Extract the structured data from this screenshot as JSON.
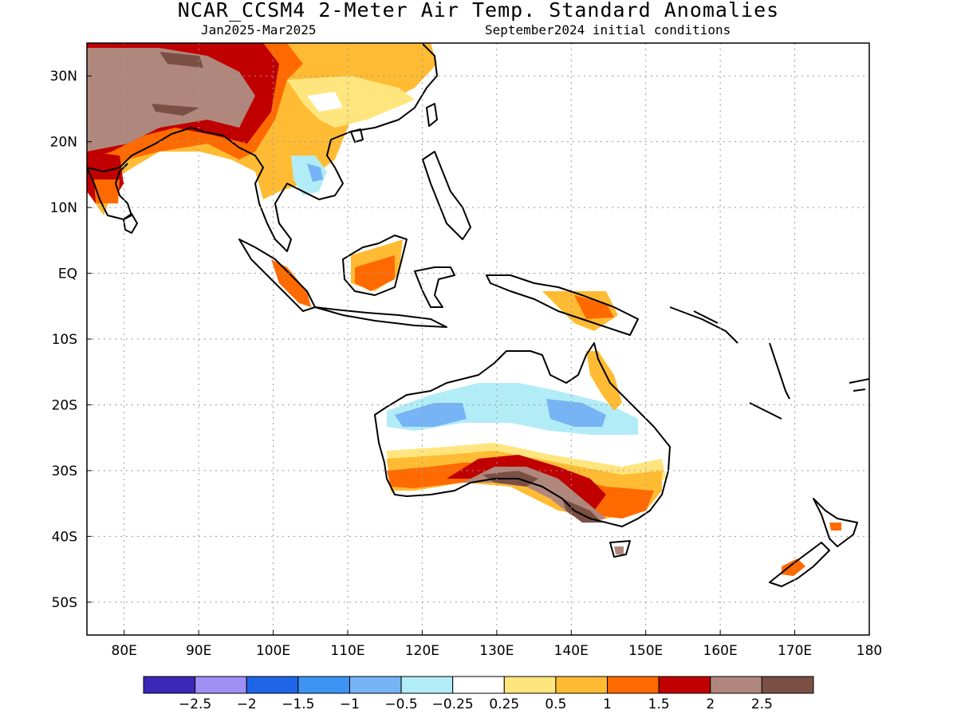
{
  "title": "NCAR_CCSM4 2-Meter Air Temp. Standard Anomalies",
  "subtitle_period": "Jan2025-Mar2025",
  "subtitle_init": "September2024 initial conditions",
  "map": {
    "lon_range": [
      75,
      180
    ],
    "lat_range": [
      -55,
      35
    ],
    "lon_ticks": [
      {
        "value": 80,
        "label": "80E"
      },
      {
        "value": 90,
        "label": "90E"
      },
      {
        "value": 100,
        "label": "100E"
      },
      {
        "value": 110,
        "label": "110E"
      },
      {
        "value": 120,
        "label": "120E"
      },
      {
        "value": 130,
        "label": "130E"
      },
      {
        "value": 140,
        "label": "140E"
      },
      {
        "value": 150,
        "label": "150E"
      },
      {
        "value": 160,
        "label": "160E"
      },
      {
        "value": 170,
        "label": "170E"
      },
      {
        "value": 180,
        "label": "180"
      }
    ],
    "lat_ticks": [
      {
        "value": 30,
        "label": "30N"
      },
      {
        "value": 20,
        "label": "20N"
      },
      {
        "value": 10,
        "label": "10N"
      },
      {
        "value": 0,
        "label": "EQ"
      },
      {
        "value": -10,
        "label": "10S"
      },
      {
        "value": -20,
        "label": "20S"
      },
      {
        "value": -30,
        "label": "30S"
      },
      {
        "value": -40,
        "label": "40S"
      },
      {
        "value": -50,
        "label": "50S"
      }
    ],
    "grid": "dotted"
  },
  "colorbar": {
    "colors": [
      "#3b27b8",
      "#9f8ff5",
      "#1f65e8",
      "#3d94f2",
      "#77b4f5",
      "#b2ecf7",
      "#ffffff",
      "#ffe57d",
      "#ffbb33",
      "#ff6a00",
      "#c00000",
      "#b0877c",
      "#7a4f44"
    ],
    "labels": [
      "-2.5",
      "-2",
      "-1.5",
      "-1",
      "-0.5",
      "-0.25",
      "0.25",
      "0.5",
      "1",
      "1.5",
      "2",
      "2.5"
    ]
  },
  "colors": {
    "land_outline": "#000000",
    "grid": "#9a9a9a"
  }
}
